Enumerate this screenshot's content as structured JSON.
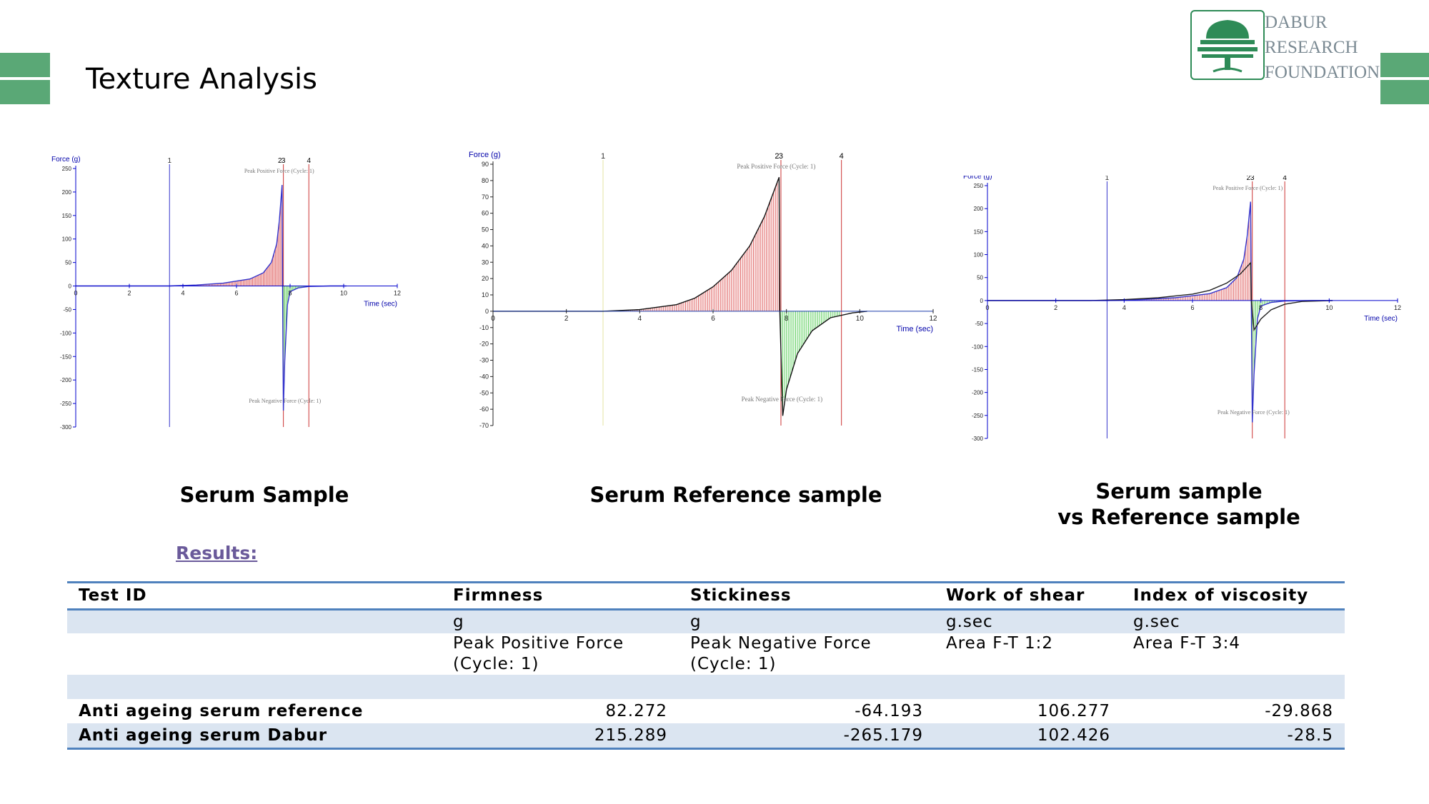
{
  "slide": {
    "title": "Texture Analysis"
  },
  "logo": {
    "line1": "DABUR",
    "line2": "RESEARCH",
    "line3": "FOUNDATION"
  },
  "colors": {
    "accent_green": "#5aa876",
    "positive_fill": "#e06666",
    "negative_fill": "#5fcf5f",
    "axis": "#0000cc",
    "table_rule": "#4f81bd",
    "table_band": "#dbe5f1"
  },
  "captions": {
    "serum_sample": "Serum Sample",
    "reference_sample": "Serum Reference sample",
    "comparison_line1": "Serum sample",
    "comparison_line2": "vs Reference sample"
  },
  "chart_data": [
    {
      "type": "area",
      "ylabel": "Force (g)",
      "xlabel": "Time (sec)",
      "xlim": [
        0,
        12
      ],
      "ylim": [
        -300,
        250
      ],
      "x_ticks": [
        "0",
        "2",
        "4",
        "6",
        "8",
        "10",
        "12"
      ],
      "y_ticks": [
        "250",
        "200",
        "150",
        "100",
        "50",
        "0",
        "-50",
        "-100",
        "-150",
        "-200",
        "-250",
        "-300"
      ],
      "markers": [
        {
          "label": "1",
          "x": 3.5
        },
        {
          "label": "2",
          "x": 7.7
        },
        {
          "label": "3",
          "x": 7.75
        },
        {
          "label": "4",
          "x": 8.7
        }
      ],
      "annotations": [
        "Peak Positive Force (Cycle: 1)",
        "Peak Negative Force (Cycle: 1)"
      ],
      "series": [
        {
          "x": [
            0,
            3.5,
            4.5,
            5.5,
            6.5,
            7.0,
            7.3,
            7.5,
            7.6,
            7.7,
            7.72,
            7.75,
            7.8,
            7.9,
            8.0,
            8.3,
            8.7,
            9.5,
            10.1
          ],
          "y": [
            0,
            0,
            2,
            6,
            15,
            28,
            50,
            90,
            140,
            215,
            0,
            -265,
            -160,
            -40,
            -12,
            -4,
            -1,
            0,
            0
          ]
        }
      ],
      "peak_positive": 215.289,
      "peak_negative": -265.179
    },
    {
      "type": "area",
      "ylabel": "Force (g)",
      "xlabel": "Time (sec)",
      "xlim": [
        0,
        12
      ],
      "ylim": [
        -70,
        90
      ],
      "x_ticks": [
        "0",
        "2",
        "4",
        "6",
        "8",
        "10",
        "12"
      ],
      "y_ticks": [
        "90",
        "80",
        "70",
        "60",
        "50",
        "40",
        "30",
        "20",
        "10",
        "0",
        "-10",
        "-20",
        "-30",
        "-40",
        "-50",
        "-60",
        "-70"
      ],
      "markers": [
        {
          "label": "1",
          "x": 3
        },
        {
          "label": "2",
          "x": 7.8
        },
        {
          "label": "3",
          "x": 7.85
        },
        {
          "label": "4",
          "x": 9.5
        }
      ],
      "annotations": [
        "Peak Positive Force (Cycle: 1)",
        "Peak Negative Force (Cycle: 1)"
      ],
      "series": [
        {
          "x": [
            0,
            3,
            4,
            5,
            5.5,
            6,
            6.5,
            7,
            7.4,
            7.8,
            7.82,
            7.9,
            8.0,
            8.3,
            8.7,
            9.2,
            9.8,
            10.2
          ],
          "y": [
            0,
            0,
            1,
            4,
            8,
            15,
            25,
            40,
            58,
            82,
            0,
            -64,
            -48,
            -26,
            -12,
            -4,
            -1,
            0
          ]
        }
      ],
      "peak_positive": 82.272,
      "peak_negative": -64.193
    },
    {
      "type": "area",
      "ylabel": "Force (g)",
      "xlabel": "Time (sec)",
      "xlim": [
        0,
        12
      ],
      "ylim": [
        -300,
        250
      ],
      "x_ticks": [
        "0",
        "2",
        "4",
        "6",
        "8",
        "10",
        "12"
      ],
      "y_ticks": [
        "250",
        "200",
        "150",
        "100",
        "50",
        "0",
        "-50",
        "-100",
        "-150",
        "-200",
        "-250",
        "-300"
      ],
      "markers": [
        {
          "label": "1",
          "x": 3.5
        },
        {
          "label": "2",
          "x": 7.7
        },
        {
          "label": "3",
          "x": 7.75
        },
        {
          "label": "4",
          "x": 8.7
        }
      ],
      "annotations": [
        "Peak Positive Force (Cycle: 1)",
        "Peak Negative Force (Cycle: 1)"
      ],
      "series": [
        {
          "x": [
            0,
            3.5,
            4.5,
            5.5,
            6.5,
            7.0,
            7.3,
            7.5,
            7.6,
            7.7,
            7.72,
            7.75,
            7.8,
            7.9,
            8.0,
            8.3,
            8.7,
            9.5,
            10.1
          ],
          "y": [
            0,
            0,
            2,
            6,
            15,
            28,
            50,
            90,
            140,
            215,
            0,
            -265,
            -160,
            -40,
            -12,
            -4,
            -1,
            0,
            0
          ]
        },
        {
          "x": [
            0,
            3,
            4,
            5,
            6,
            6.5,
            7,
            7.4,
            7.7,
            7.72,
            7.8,
            8.0,
            8.3,
            8.7,
            9.2,
            10.1
          ],
          "y": [
            0,
            0,
            2,
            6,
            14,
            22,
            38,
            58,
            82,
            0,
            -64,
            -40,
            -20,
            -8,
            -2,
            0
          ]
        }
      ]
    }
  ],
  "results": {
    "heading": "Results:",
    "columns": [
      "Test ID",
      "Firmness",
      "Stickiness",
      "Work of shear",
      "Index of viscosity"
    ],
    "units": [
      "",
      "g",
      "g",
      "g.sec",
      "g.sec"
    ],
    "descriptions": [
      [
        "",
        ""
      ],
      [
        "Peak Positive Force",
        "(Cycle: 1)"
      ],
      [
        "Peak Negative Force",
        "(Cycle: 1)"
      ],
      [
        "Area F-T 1:2",
        ""
      ],
      [
        "Area F-T 3:4",
        ""
      ]
    ],
    "rows": [
      [
        "Anti ageing serum reference",
        "82.272",
        "-64.193",
        "106.277",
        "-29.868"
      ],
      [
        "Anti ageing serum Dabur",
        "215.289",
        "-265.179",
        "102.426",
        "-28.5"
      ]
    ]
  }
}
